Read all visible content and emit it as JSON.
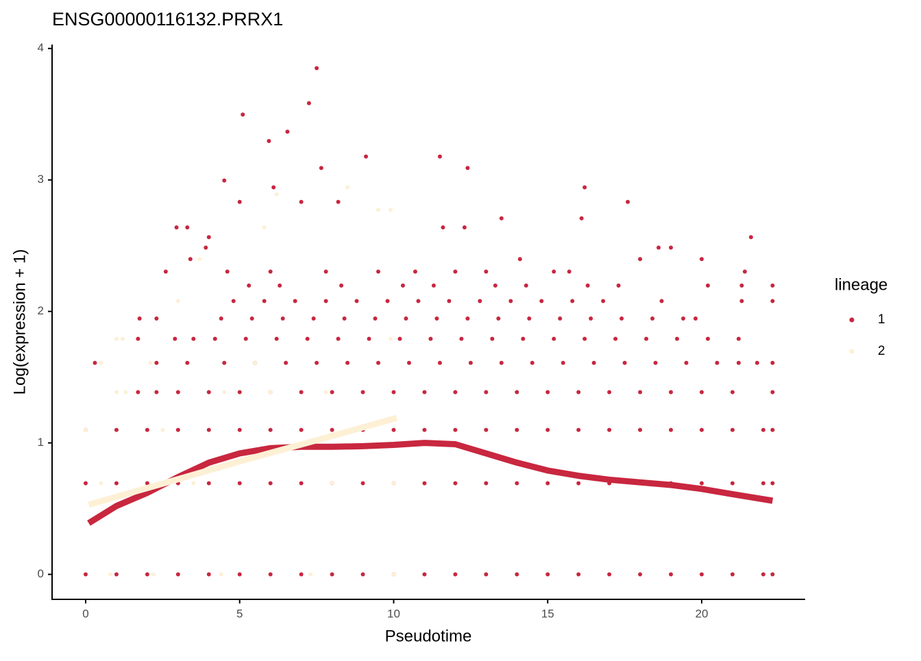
{
  "chart_data": {
    "type": "scatter",
    "title": "ENSG00000116132.PRRX1",
    "x_label": "Pseudotime",
    "y_label": "Log(expression + 1)",
    "legend_title": "lineage",
    "grid": false,
    "xlim": [
      -1.09,
      23.36
    ],
    "ylim": [
      -0.19,
      4.03
    ],
    "xticks": [
      0,
      5,
      10,
      15,
      20
    ],
    "yticks": [
      0,
      1,
      2,
      3,
      4
    ],
    "series": [
      {
        "name": "1",
        "color": "#c8273f",
        "x": [
          0,
          1,
          2,
          3,
          4,
          5,
          6,
          7,
          8,
          9,
          10,
          11,
          12,
          13,
          14,
          15,
          16,
          17,
          18,
          19,
          20,
          21,
          22,
          22.3,
          0,
          1,
          2,
          3,
          4,
          5,
          6,
          7,
          8,
          9,
          10,
          11,
          12,
          13,
          14,
          15,
          16,
          17,
          18,
          19,
          20,
          21,
          22,
          22.3,
          0,
          1,
          2,
          3,
          4,
          5,
          6,
          7,
          8,
          9,
          10,
          11,
          12,
          13,
          14,
          15,
          16,
          17,
          18,
          19,
          20,
          21,
          22,
          22.3,
          1.7,
          2.3,
          3,
          4,
          5,
          6,
          7,
          8,
          9,
          10,
          11,
          12,
          13,
          14,
          15,
          16,
          17,
          18,
          19,
          20,
          21,
          22.3,
          0.3,
          2.3,
          3.3,
          4.5,
          5.5,
          6.5,
          7.5,
          8.5,
          9.5,
          10.5,
          11.5,
          12.5,
          13.5,
          14.5,
          15.5,
          16.5,
          17.5,
          18.5,
          19.5,
          20.5,
          21.2,
          21.8,
          22.3,
          1.7,
          2.9,
          3.5,
          4.2,
          5.2,
          6.2,
          7.2,
          8.2,
          9.2,
          10.2,
          11.2,
          12.2,
          13.2,
          14.2,
          15.2,
          16.2,
          17.2,
          18.2,
          19.2,
          20.2,
          21.2,
          1.75,
          2.3,
          4.4,
          5.4,
          6.4,
          7.4,
          8.4,
          9.4,
          10.4,
          11.4,
          12.4,
          13.4,
          14.4,
          15.4,
          16.4,
          17.4,
          18.4,
          19.4,
          19.8,
          4.8,
          5.8,
          6.8,
          7.8,
          8.8,
          9.8,
          10.8,
          11.8,
          12.8,
          13.8,
          14.8,
          15.8,
          16.8,
          18.7,
          21.3,
          22.3,
          5.3,
          6.3,
          8.3,
          10.3,
          11.3,
          13.3,
          14.3,
          16.3,
          17.3,
          20.2,
          21.3,
          22.3,
          4.6,
          6.0,
          7.8,
          9.5,
          10.7,
          12.0,
          13.0,
          15.2,
          15.7,
          21.4,
          7.5,
          7.25,
          5.1,
          5.95,
          9.1,
          11.5,
          12.4,
          7.65,
          6.55,
          4.5,
          6.1,
          16.2,
          17.6,
          8.2,
          7.0,
          5.0,
          2.95,
          3.3,
          13.5,
          16.1,
          21.6,
          4.0,
          3.9,
          18.6,
          19.0,
          20.0,
          18.0,
          3.4,
          2.6,
          14.1,
          12.3,
          11.6
        ],
        "values": [
          0,
          0,
          0,
          0,
          0,
          0,
          0,
          0,
          0,
          0,
          0,
          0,
          0,
          0,
          0,
          0,
          0,
          0,
          0,
          0,
          0,
          0,
          0,
          0,
          0.693,
          0.693,
          0.693,
          0.693,
          0.693,
          0.693,
          0.693,
          0.693,
          0.693,
          0.693,
          0.693,
          0.693,
          0.693,
          0.693,
          0.693,
          0.693,
          0.693,
          0.693,
          0.693,
          0.693,
          0.693,
          0.693,
          0.693,
          0.693,
          1.099,
          1.099,
          1.099,
          1.099,
          1.099,
          1.099,
          1.099,
          1.099,
          1.099,
          1.099,
          1.099,
          1.099,
          1.099,
          1.099,
          1.099,
          1.099,
          1.099,
          1.099,
          1.099,
          1.099,
          1.099,
          1.099,
          1.099,
          1.099,
          1.386,
          1.386,
          1.386,
          1.386,
          1.386,
          1.386,
          1.386,
          1.386,
          1.386,
          1.386,
          1.386,
          1.386,
          1.386,
          1.386,
          1.386,
          1.386,
          1.386,
          1.386,
          1.386,
          1.386,
          1.386,
          1.386,
          1.609,
          1.609,
          1.609,
          1.609,
          1.609,
          1.609,
          1.609,
          1.609,
          1.609,
          1.609,
          1.609,
          1.609,
          1.609,
          1.609,
          1.609,
          1.609,
          1.609,
          1.609,
          1.609,
          1.609,
          1.609,
          1.609,
          1.609,
          1.792,
          1.792,
          1.792,
          1.792,
          1.792,
          1.792,
          1.792,
          1.792,
          1.792,
          1.792,
          1.792,
          1.792,
          1.792,
          1.792,
          1.792,
          1.792,
          1.792,
          1.792,
          1.792,
          1.792,
          1.792,
          1.946,
          1.946,
          1.946,
          1.946,
          1.946,
          1.946,
          1.946,
          1.946,
          1.946,
          1.946,
          1.946,
          1.946,
          1.946,
          1.946,
          1.946,
          1.946,
          1.946,
          1.946,
          1.946,
          2.079,
          2.079,
          2.079,
          2.079,
          2.079,
          2.079,
          2.079,
          2.079,
          2.079,
          2.079,
          2.079,
          2.079,
          2.079,
          2.079,
          2.079,
          2.079,
          2.197,
          2.197,
          2.197,
          2.197,
          2.197,
          2.197,
          2.197,
          2.197,
          2.197,
          2.197,
          2.197,
          2.197,
          2.303,
          2.303,
          2.303,
          2.303,
          2.303,
          2.303,
          2.303,
          2.303,
          2.303,
          2.303,
          3.85,
          3.584,
          3.497,
          3.296,
          3.178,
          3.178,
          3.091,
          3.091,
          3.367,
          2.996,
          2.944,
          2.944,
          2.833,
          2.833,
          2.833,
          2.833,
          2.639,
          2.639,
          2.708,
          2.708,
          2.565,
          2.565,
          2.485,
          2.485,
          2.485,
          2.398,
          2.398,
          2.398,
          2.303,
          2.398,
          2.639,
          2.639
        ],
        "fit_x": [
          0.1,
          1,
          2,
          3,
          4,
          5,
          6,
          7,
          8,
          9,
          10,
          11,
          12,
          13,
          14,
          15,
          16,
          17,
          18,
          19,
          20,
          21,
          22.3
        ],
        "fit_values": [
          0.39,
          0.52,
          0.62,
          0.74,
          0.85,
          0.92,
          0.96,
          0.97,
          0.97,
          0.975,
          0.985,
          1.0,
          0.99,
          0.92,
          0.85,
          0.79,
          0.75,
          0.72,
          0.7,
          0.68,
          0.65,
          0.61,
          0.56
        ]
      },
      {
        "name": "2",
        "color": "#fdf0d5",
        "x": [
          8.5,
          9.5,
          9.9,
          6.2,
          5.8,
          3.0,
          3.7,
          1.0,
          1.2,
          0.5,
          2.1,
          1.0,
          1.3,
          0,
          2.5,
          0.5,
          3.5,
          8,
          10,
          0.8,
          2.2,
          4.4,
          7.3,
          10,
          6,
          4.5,
          9.9,
          5.5,
          7.8
        ],
        "values": [
          2.944,
          2.773,
          2.773,
          2.89,
          2.639,
          2.079,
          2.398,
          1.792,
          1.792,
          1.609,
          1.609,
          1.386,
          1.386,
          1.099,
          1.099,
          0.693,
          0.693,
          0.693,
          0.693,
          0,
          0,
          0,
          0,
          0,
          1.386,
          1.386,
          1.792,
          1.609,
          1.386
        ],
        "fit_x": [
          0.1,
          2.5,
          5,
          7.5,
          10.1
        ],
        "fit_values": [
          0.53,
          0.69,
          0.86,
          1.02,
          1.19
        ]
      }
    ]
  }
}
